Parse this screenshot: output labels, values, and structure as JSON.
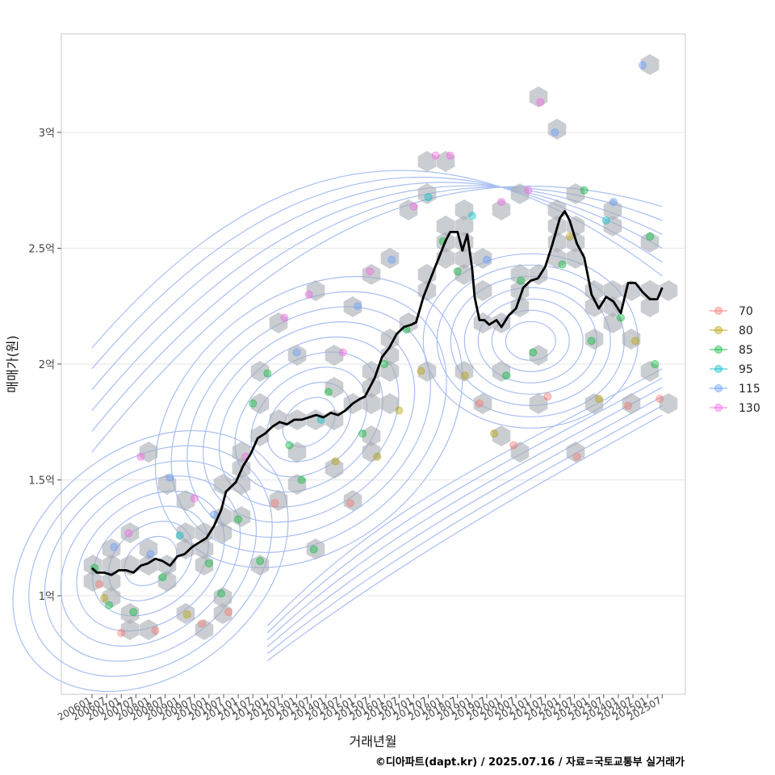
{
  "chart_data": {
    "type": "scatter",
    "xlabel": "거래년월",
    "ylabel": "매매가(원)",
    "caption": "©디아파트(dapt.kr) / 2025.07.16 / 자료=국토교통부 실거래가",
    "x_ticks": [
      "200601",
      "200607",
      "200701",
      "200707",
      "200801",
      "200807",
      "200901",
      "200907",
      "201001",
      "201007",
      "201101",
      "201107",
      "201201",
      "201207",
      "201301",
      "201307",
      "201401",
      "201407",
      "201501",
      "201507",
      "201601",
      "201607",
      "201701",
      "201707",
      "201801",
      "201807",
      "201901",
      "201907",
      "202001",
      "202007",
      "202101",
      "202107",
      "202201",
      "202207",
      "202301",
      "202307",
      "202401",
      "202407",
      "202501",
      "202507"
    ],
    "y_ticks": [
      {
        "label": "1억",
        "value": 100000000
      },
      {
        "label": "1.5억",
        "value": 150000000
      },
      {
        "label": "2억",
        "value": 200000000
      },
      {
        "label": "2.5억",
        "value": 250000000
      },
      {
        "label": "3억",
        "value": 300000000
      }
    ],
    "xlim": [
      "2006-01",
      "2025-07"
    ],
    "ylim": [
      57500000,
      342500000
    ],
    "grid": true,
    "legend_position": "right",
    "legend": [
      {
        "name": "70",
        "color": "#F8766D"
      },
      {
        "name": "80",
        "color": "#B79F00"
      },
      {
        "name": "85",
        "color": "#00BA38"
      },
      {
        "name": "95",
        "color": "#00BFC4"
      },
      {
        "name": "115",
        "color": "#619CFF"
      },
      {
        "name": "130",
        "color": "#F564E3"
      }
    ],
    "trend_line": {
      "color": "#000000",
      "points": [
        [
          "2006-01",
          112
        ],
        [
          "2006-03",
          110
        ],
        [
          "2006-06",
          110
        ],
        [
          "2006-09",
          109
        ],
        [
          "2006-12",
          111
        ],
        [
          "2007-03",
          111
        ],
        [
          "2007-06",
          110
        ],
        [
          "2007-09",
          113
        ],
        [
          "2007-12",
          114
        ],
        [
          "2008-03",
          116
        ],
        [
          "2008-06",
          115
        ],
        [
          "2008-09",
          113
        ],
        [
          "2008-12",
          117
        ],
        [
          "2009-03",
          118
        ],
        [
          "2009-06",
          121
        ],
        [
          "2009-09",
          123
        ],
        [
          "2009-12",
          125
        ],
        [
          "2010-03",
          130
        ],
        [
          "2010-06",
          137
        ],
        [
          "2010-08",
          145
        ],
        [
          "2010-12",
          149
        ],
        [
          "2011-03",
          156
        ],
        [
          "2011-06",
          161
        ],
        [
          "2011-09",
          168
        ],
        [
          "2011-12",
          170
        ],
        [
          "2012-03",
          173
        ],
        [
          "2012-06",
          175
        ],
        [
          "2012-09",
          174
        ],
        [
          "2012-12",
          176
        ],
        [
          "2013-03",
          176
        ],
        [
          "2013-06",
          177
        ],
        [
          "2013-09",
          178
        ],
        [
          "2013-12",
          177
        ],
        [
          "2014-03",
          179
        ],
        [
          "2014-06",
          178
        ],
        [
          "2014-09",
          180
        ],
        [
          "2014-12",
          183
        ],
        [
          "2015-03",
          185
        ],
        [
          "2015-05",
          186
        ],
        [
          "2015-07",
          190
        ],
        [
          "2015-09",
          194
        ],
        [
          "2015-12",
          203
        ],
        [
          "2016-03",
          207
        ],
        [
          "2016-06",
          213
        ],
        [
          "2016-09",
          216
        ],
        [
          "2016-12",
          217
        ],
        [
          "2017-02",
          218
        ],
        [
          "2017-05",
          229
        ],
        [
          "2017-08",
          237
        ],
        [
          "2017-11",
          245
        ],
        [
          "2018-02",
          253
        ],
        [
          "2018-04",
          257
        ],
        [
          "2018-07",
          257
        ],
        [
          "2018-09",
          249
        ],
        [
          "2018-11",
          256
        ],
        [
          "2019-01",
          241
        ],
        [
          "2019-02",
          229
        ],
        [
          "2019-04",
          219
        ],
        [
          "2019-06",
          219
        ],
        [
          "2019-08",
          217
        ],
        [
          "2019-11",
          219
        ],
        [
          "2020-01",
          216
        ],
        [
          "2020-04",
          221
        ],
        [
          "2020-07",
          224
        ],
        [
          "2020-10",
          233
        ],
        [
          "2021-01",
          236
        ],
        [
          "2021-04",
          237
        ],
        [
          "2021-07",
          242
        ],
        [
          "2021-10",
          252
        ],
        [
          "2022-01",
          263
        ],
        [
          "2022-03",
          266
        ],
        [
          "2022-05",
          262
        ],
        [
          "2022-08",
          252
        ],
        [
          "2022-11",
          246
        ],
        [
          "2023-02",
          230
        ],
        [
          "2023-05",
          224
        ],
        [
          "2023-08",
          229
        ],
        [
          "2023-11",
          227
        ],
        [
          "2024-02",
          222
        ],
        [
          "2024-05",
          235
        ],
        [
          "2024-08",
          235
        ],
        [
          "2024-11",
          231
        ],
        [
          "2025-02",
          228
        ],
        [
          "2025-05",
          228
        ],
        [
          "2025-07",
          233
        ]
      ]
    },
    "density_contours": {
      "color": "#A8BEF2",
      "description_centers": [
        {
          "x": "2008-01",
          "y": 115
        },
        {
          "x": "2013-06",
          "y": 175
        },
        {
          "x": "2021-01",
          "y": 210
        }
      ]
    },
    "scatter_points": [
      {
        "x": "2006-02",
        "y": 112,
        "series": "85"
      },
      {
        "x": "2006-04",
        "y": 105,
        "series": "70"
      },
      {
        "x": "2006-06",
        "y": 99,
        "series": "80"
      },
      {
        "x": "2006-08",
        "y": 96,
        "series": "85"
      },
      {
        "x": "2006-10",
        "y": 121,
        "series": "115"
      },
      {
        "x": "2007-01",
        "y": 84,
        "series": "70"
      },
      {
        "x": "2007-04",
        "y": 127,
        "series": "130"
      },
      {
        "x": "2007-06",
        "y": 93,
        "series": "85"
      },
      {
        "x": "2007-09",
        "y": 160,
        "series": "130"
      },
      {
        "x": "2008-01",
        "y": 118,
        "series": "115"
      },
      {
        "x": "2008-03",
        "y": 85,
        "series": "70"
      },
      {
        "x": "2008-06",
        "y": 108,
        "series": "85"
      },
      {
        "x": "2008-09",
        "y": 151,
        "series": "115"
      },
      {
        "x": "2009-01",
        "y": 126,
        "series": "95"
      },
      {
        "x": "2009-04",
        "y": 92,
        "series": "80"
      },
      {
        "x": "2009-07",
        "y": 142,
        "series": "130"
      },
      {
        "x": "2009-10",
        "y": 88,
        "series": "70"
      },
      {
        "x": "2010-01",
        "y": 114,
        "series": "85"
      },
      {
        "x": "2010-03",
        "y": 135,
        "series": "115"
      },
      {
        "x": "2010-06",
        "y": 101,
        "series": "85"
      },
      {
        "x": "2010-09",
        "y": 93,
        "series": "70"
      },
      {
        "x": "2011-01",
        "y": 133,
        "series": "85"
      },
      {
        "x": "2011-04",
        "y": 160,
        "series": "130"
      },
      {
        "x": "2011-07",
        "y": 183,
        "series": "85"
      },
      {
        "x": "2011-10",
        "y": 115,
        "series": "85"
      },
      {
        "x": "2012-01",
        "y": 196,
        "series": "85"
      },
      {
        "x": "2012-04",
        "y": 140,
        "series": "70"
      },
      {
        "x": "2012-08",
        "y": 220,
        "series": "130"
      },
      {
        "x": "2012-10",
        "y": 165,
        "series": "85"
      },
      {
        "x": "2013-01",
        "y": 205,
        "series": "115"
      },
      {
        "x": "2013-03",
        "y": 150,
        "series": "85"
      },
      {
        "x": "2013-06",
        "y": 230,
        "series": "130"
      },
      {
        "x": "2013-08",
        "y": 120,
        "series": "85"
      },
      {
        "x": "2013-11",
        "y": 176,
        "series": "95"
      },
      {
        "x": "2014-02",
        "y": 188,
        "series": "85"
      },
      {
        "x": "2014-05",
        "y": 158,
        "series": "80"
      },
      {
        "x": "2014-08",
        "y": 205,
        "series": "130"
      },
      {
        "x": "2014-11",
        "y": 140,
        "series": "70"
      },
      {
        "x": "2015-02",
        "y": 225,
        "series": "115"
      },
      {
        "x": "2015-04",
        "y": 170,
        "series": "85"
      },
      {
        "x": "2015-07",
        "y": 240,
        "series": "130"
      },
      {
        "x": "2015-10",
        "y": 160,
        "series": "80"
      },
      {
        "x": "2016-01",
        "y": 200,
        "series": "85"
      },
      {
        "x": "2016-04",
        "y": 245,
        "series": "115"
      },
      {
        "x": "2016-07",
        "y": 180,
        "series": "80"
      },
      {
        "x": "2016-10",
        "y": 215,
        "series": "85"
      },
      {
        "x": "2017-01",
        "y": 268,
        "series": "130"
      },
      {
        "x": "2017-04",
        "y": 197,
        "series": "80"
      },
      {
        "x": "2017-07",
        "y": 272,
        "series": "95"
      },
      {
        "x": "2017-10",
        "y": 290,
        "series": "130"
      },
      {
        "x": "2018-01",
        "y": 253,
        "series": "85"
      },
      {
        "x": "2018-04",
        "y": 290,
        "series": "130"
      },
      {
        "x": "2018-07",
        "y": 240,
        "series": "85"
      },
      {
        "x": "2018-10",
        "y": 195,
        "series": "80"
      },
      {
        "x": "2019-01",
        "y": 264,
        "series": "95"
      },
      {
        "x": "2019-04",
        "y": 183,
        "series": "70"
      },
      {
        "x": "2019-07",
        "y": 245,
        "series": "115"
      },
      {
        "x": "2019-10",
        "y": 170,
        "series": "80"
      },
      {
        "x": "2020-01",
        "y": 270,
        "series": "130"
      },
      {
        "x": "2020-03",
        "y": 195,
        "series": "85"
      },
      {
        "x": "2020-06",
        "y": 165,
        "series": "70"
      },
      {
        "x": "2020-09",
        "y": 236,
        "series": "85"
      },
      {
        "x": "2020-12",
        "y": 275,
        "series": "130"
      },
      {
        "x": "2021-02",
        "y": 205,
        "series": "85"
      },
      {
        "x": "2021-05",
        "y": 313,
        "series": "130"
      },
      {
        "x": "2021-08",
        "y": 186,
        "series": "70"
      },
      {
        "x": "2021-11",
        "y": 300,
        "series": "115"
      },
      {
        "x": "2022-02",
        "y": 243,
        "series": "85"
      },
      {
        "x": "2022-05",
        "y": 255,
        "series": "80"
      },
      {
        "x": "2022-08",
        "y": 160,
        "series": "70"
      },
      {
        "x": "2022-11",
        "y": 275,
        "series": "85"
      },
      {
        "x": "2023-02",
        "y": 210,
        "series": "85"
      },
      {
        "x": "2023-05",
        "y": 185,
        "series": "80"
      },
      {
        "x": "2023-08",
        "y": 262,
        "series": "95"
      },
      {
        "x": "2023-11",
        "y": 270,
        "series": "115"
      },
      {
        "x": "2024-02",
        "y": 220,
        "series": "85"
      },
      {
        "x": "2024-05",
        "y": 182,
        "series": "70"
      },
      {
        "x": "2024-08",
        "y": 210,
        "series": "80"
      },
      {
        "x": "2024-11",
        "y": 329,
        "series": "115"
      },
      {
        "x": "2025-02",
        "y": 255,
        "series": "85"
      },
      {
        "x": "2025-04",
        "y": 200,
        "series": "85"
      },
      {
        "x": "2025-06",
        "y": 185,
        "series": "70"
      }
    ],
    "hexbins_note": "grey hexagon density overlay"
  }
}
